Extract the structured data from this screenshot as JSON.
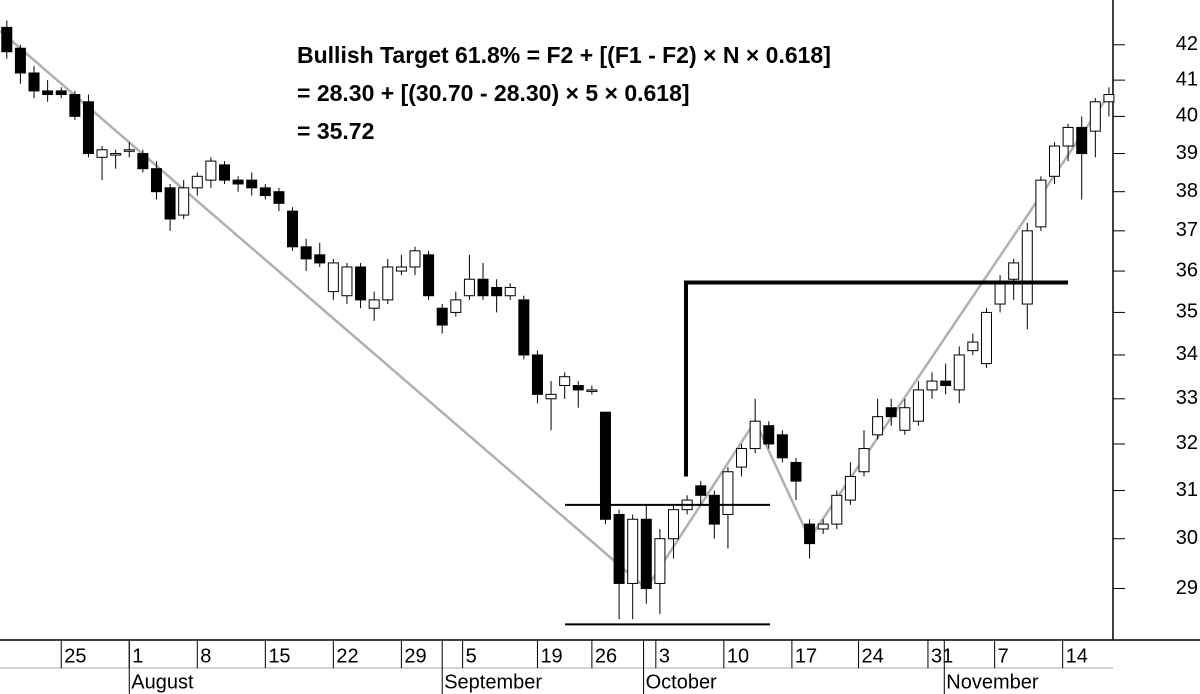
{
  "chart_data": {
    "type": "candlestick",
    "annotation_lines": [
      "Bullish Target 61.8% = F2 + [(F1 - F2) × N × 0.618]",
      "= 28.30 + [(30.70 - 28.30) × 5 × 0.618]",
      "= 35.72"
    ],
    "x": [
      0,
      1,
      2,
      3,
      4,
      5,
      6,
      7,
      8,
      9,
      10,
      11,
      12,
      13,
      14,
      15,
      16,
      17,
      18,
      19,
      20,
      21,
      22,
      23,
      24,
      25,
      26,
      27,
      28,
      29,
      30,
      31,
      32,
      33,
      34,
      35,
      36,
      37,
      38,
      39,
      40,
      41,
      42,
      43,
      44,
      45,
      46,
      47,
      48,
      49,
      50,
      51,
      52,
      53,
      54,
      55,
      56,
      57,
      58,
      59,
      60,
      61,
      62,
      63,
      64,
      65,
      66,
      67,
      68,
      69,
      70,
      71,
      72,
      73,
      74,
      75,
      76,
      77,
      78,
      79,
      80,
      81
    ],
    "open": [
      42.5,
      41.9,
      41.2,
      40.7,
      40.7,
      40.6,
      40.4,
      38.9,
      39.0,
      39.1,
      39.0,
      38.6,
      38.1,
      37.4,
      38.1,
      38.3,
      38.7,
      38.3,
      38.3,
      38.1,
      38.0,
      37.5,
      36.6,
      36.4,
      35.5,
      35.4,
      36.1,
      35.1,
      35.3,
      36.0,
      36.1,
      36.4,
      35.1,
      35.0,
      35.4,
      35.8,
      35.6,
      35.4,
      35.3,
      34.0,
      33.0,
      33.3,
      33.3,
      33.2,
      32.7,
      30.5,
      29.1,
      30.4,
      29.1,
      30.0,
      30.6,
      31.1,
      30.9,
      30.5,
      31.5,
      31.9,
      32.4,
      32.2,
      31.6,
      30.3,
      30.2,
      30.3,
      30.8,
      31.4,
      32.2,
      32.8,
      32.3,
      32.5,
      33.2,
      33.4,
      33.2,
      34.1,
      33.8,
      35.2,
      35.8,
      35.2,
      37.1,
      38.4,
      39.2,
      39.7,
      39.6,
      40.4
    ],
    "high": [
      42.7,
      42.0,
      41.4,
      41.0,
      40.8,
      40.7,
      40.6,
      39.2,
      39.1,
      39.3,
      39.1,
      38.8,
      38.2,
      38.3,
      38.5,
      38.9,
      38.8,
      38.4,
      38.5,
      38.2,
      38.1,
      37.6,
      36.8,
      36.7,
      36.3,
      36.2,
      36.2,
      35.5,
      36.3,
      36.4,
      36.6,
      36.5,
      35.2,
      35.5,
      36.4,
      36.2,
      35.8,
      35.7,
      35.4,
      34.1,
      33.4,
      33.6,
      33.4,
      33.3,
      32.7,
      30.6,
      30.5,
      30.7,
      30.2,
      30.7,
      30.9,
      31.2,
      31.0,
      31.5,
      32.0,
      33.0,
      32.5,
      32.3,
      31.7,
      30.4,
      30.4,
      31.0,
      31.6,
      32.3,
      33.0,
      33.0,
      33.0,
      33.4,
      33.6,
      33.8,
      34.2,
      34.5,
      35.1,
      35.9,
      36.3,
      37.2,
      38.4,
      39.3,
      39.8,
      40.0,
      40.5,
      40.8
    ],
    "low": [
      41.6,
      40.9,
      40.5,
      40.4,
      40.5,
      39.9,
      38.9,
      38.3,
      38.6,
      38.9,
      38.5,
      37.8,
      37.0,
      37.3,
      37.9,
      38.1,
      38.2,
      38.0,
      37.9,
      37.8,
      37.5,
      36.5,
      36.0,
      36.1,
      35.3,
      35.2,
      35.1,
      34.8,
      35.2,
      35.9,
      35.9,
      35.3,
      34.5,
      34.9,
      35.3,
      35.3,
      35.0,
      35.3,
      33.9,
      32.9,
      32.3,
      33.0,
      32.8,
      33.1,
      30.3,
      28.4,
      28.4,
      28.7,
      28.5,
      29.6,
      30.5,
      30.7,
      30.0,
      29.8,
      31.3,
      31.8,
      31.9,
      31.6,
      30.8,
      29.6,
      30.1,
      30.2,
      30.7,
      31.3,
      32.1,
      32.4,
      32.2,
      32.4,
      33.0,
      33.1,
      32.9,
      34.0,
      33.7,
      35.0,
      35.3,
      34.6,
      37.0,
      38.2,
      38.8,
      37.8,
      38.9,
      40.0
    ],
    "close": [
      41.8,
      41.2,
      40.7,
      40.6,
      40.6,
      40.0,
      39.0,
      39.1,
      39.0,
      39.1,
      38.6,
      38.0,
      37.3,
      38.1,
      38.4,
      38.8,
      38.3,
      38.2,
      38.1,
      37.9,
      37.7,
      36.6,
      36.3,
      36.2,
      36.2,
      36.1,
      35.3,
      35.3,
      36.1,
      36.1,
      36.5,
      35.4,
      34.7,
      35.3,
      35.8,
      35.4,
      35.4,
      35.6,
      34.0,
      33.1,
      33.1,
      33.5,
      33.2,
      33.2,
      30.4,
      29.1,
      30.4,
      29.0,
      30.0,
      30.6,
      30.8,
      30.9,
      30.3,
      31.4,
      31.9,
      32.5,
      32.0,
      31.7,
      31.2,
      29.9,
      30.3,
      30.9,
      31.3,
      31.9,
      32.6,
      32.6,
      32.8,
      33.2,
      33.4,
      33.3,
      34.0,
      34.3,
      35.0,
      35.7,
      36.2,
      37.0,
      38.3,
      39.2,
      39.7,
      39.0,
      40.4,
      40.6
    ],
    "trend_line": {
      "x": [
        -0.5,
        47,
        55,
        59,
        81
      ],
      "values": [
        42.4,
        29.0,
        32.5,
        30.0,
        40.6
      ]
    },
    "levels": {
      "f1": 30.7,
      "f2": 28.3,
      "target": 35.72,
      "target_start": 31.3
    },
    "log_y": true,
    "xlim": [
      -0.5,
      81.3
    ],
    "ylim": [
      28.0,
      43.3
    ],
    "yticks": [
      29,
      30,
      31,
      32,
      33,
      34,
      35,
      36,
      37,
      38,
      39,
      40,
      41,
      42
    ],
    "xticks": [
      {
        "value": 4,
        "label": "25"
      },
      {
        "value": 9,
        "label": "1"
      },
      {
        "value": 14,
        "label": "8"
      },
      {
        "value": 19,
        "label": "15"
      },
      {
        "value": 24,
        "label": "22"
      },
      {
        "value": 29,
        "label": "29"
      },
      {
        "value": 33.5,
        "label": "5"
      },
      {
        "value": 39,
        "label": "19"
      },
      {
        "value": 43,
        "label": "26"
      },
      {
        "value": 47.7,
        "label": "3"
      },
      {
        "value": 52.7,
        "label": "10"
      },
      {
        "value": 57.7,
        "label": "17"
      },
      {
        "value": 62.6,
        "label": "24"
      },
      {
        "value": 67.7,
        "label": "31"
      },
      {
        "value": 72.6,
        "label": "7"
      },
      {
        "value": 77.6,
        "label": "14"
      }
    ],
    "month_ticks": [
      {
        "value": 9,
        "label": "August"
      },
      {
        "value": 32,
        "label": "September"
      },
      {
        "value": 46.8,
        "label": "October"
      },
      {
        "value": 68.9,
        "label": "November"
      }
    ]
  }
}
